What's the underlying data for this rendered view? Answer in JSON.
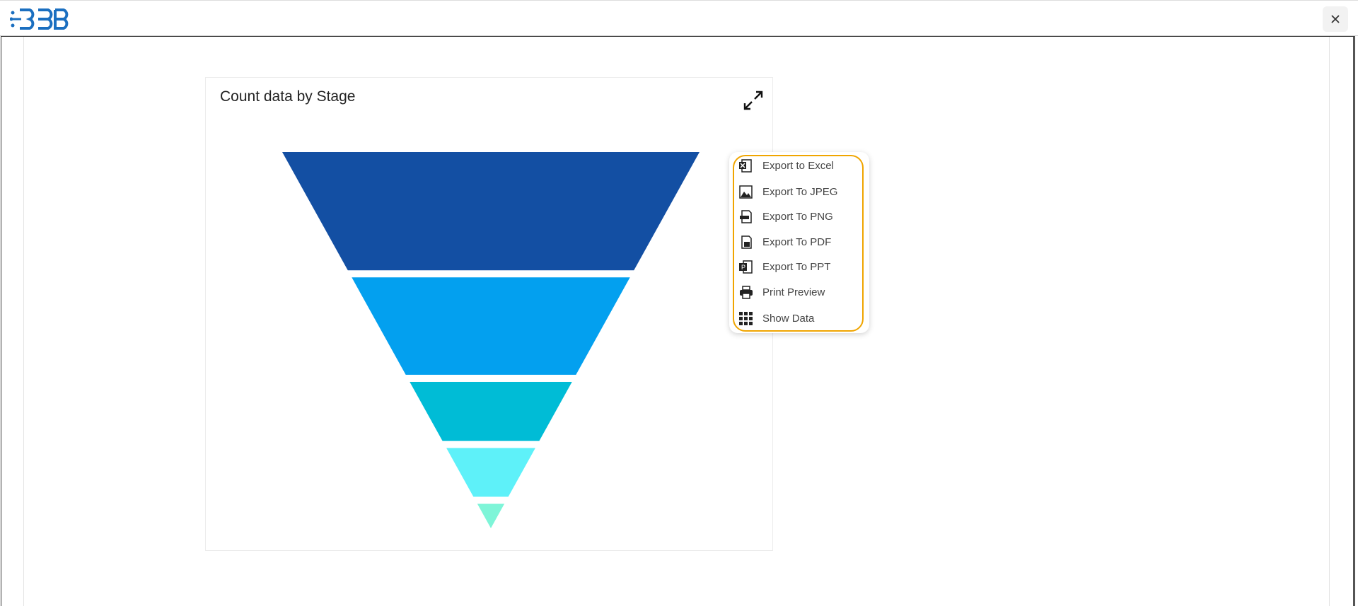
{
  "chart_data": {
    "type": "funnel",
    "title": "Count data by Stage",
    "values": [
      34,
      28,
      17,
      14,
      7
    ],
    "colors": [
      "#134fa3",
      "#03a0ef",
      "#00bcd6",
      "#5ef1f9",
      "#7ef5d8"
    ]
  },
  "menu": {
    "items": [
      "Export to Excel",
      "Export To JPEG",
      "Export To PNG",
      "Export To PDF",
      "Export To PPT",
      "Print Preview",
      "Show Data"
    ]
  }
}
